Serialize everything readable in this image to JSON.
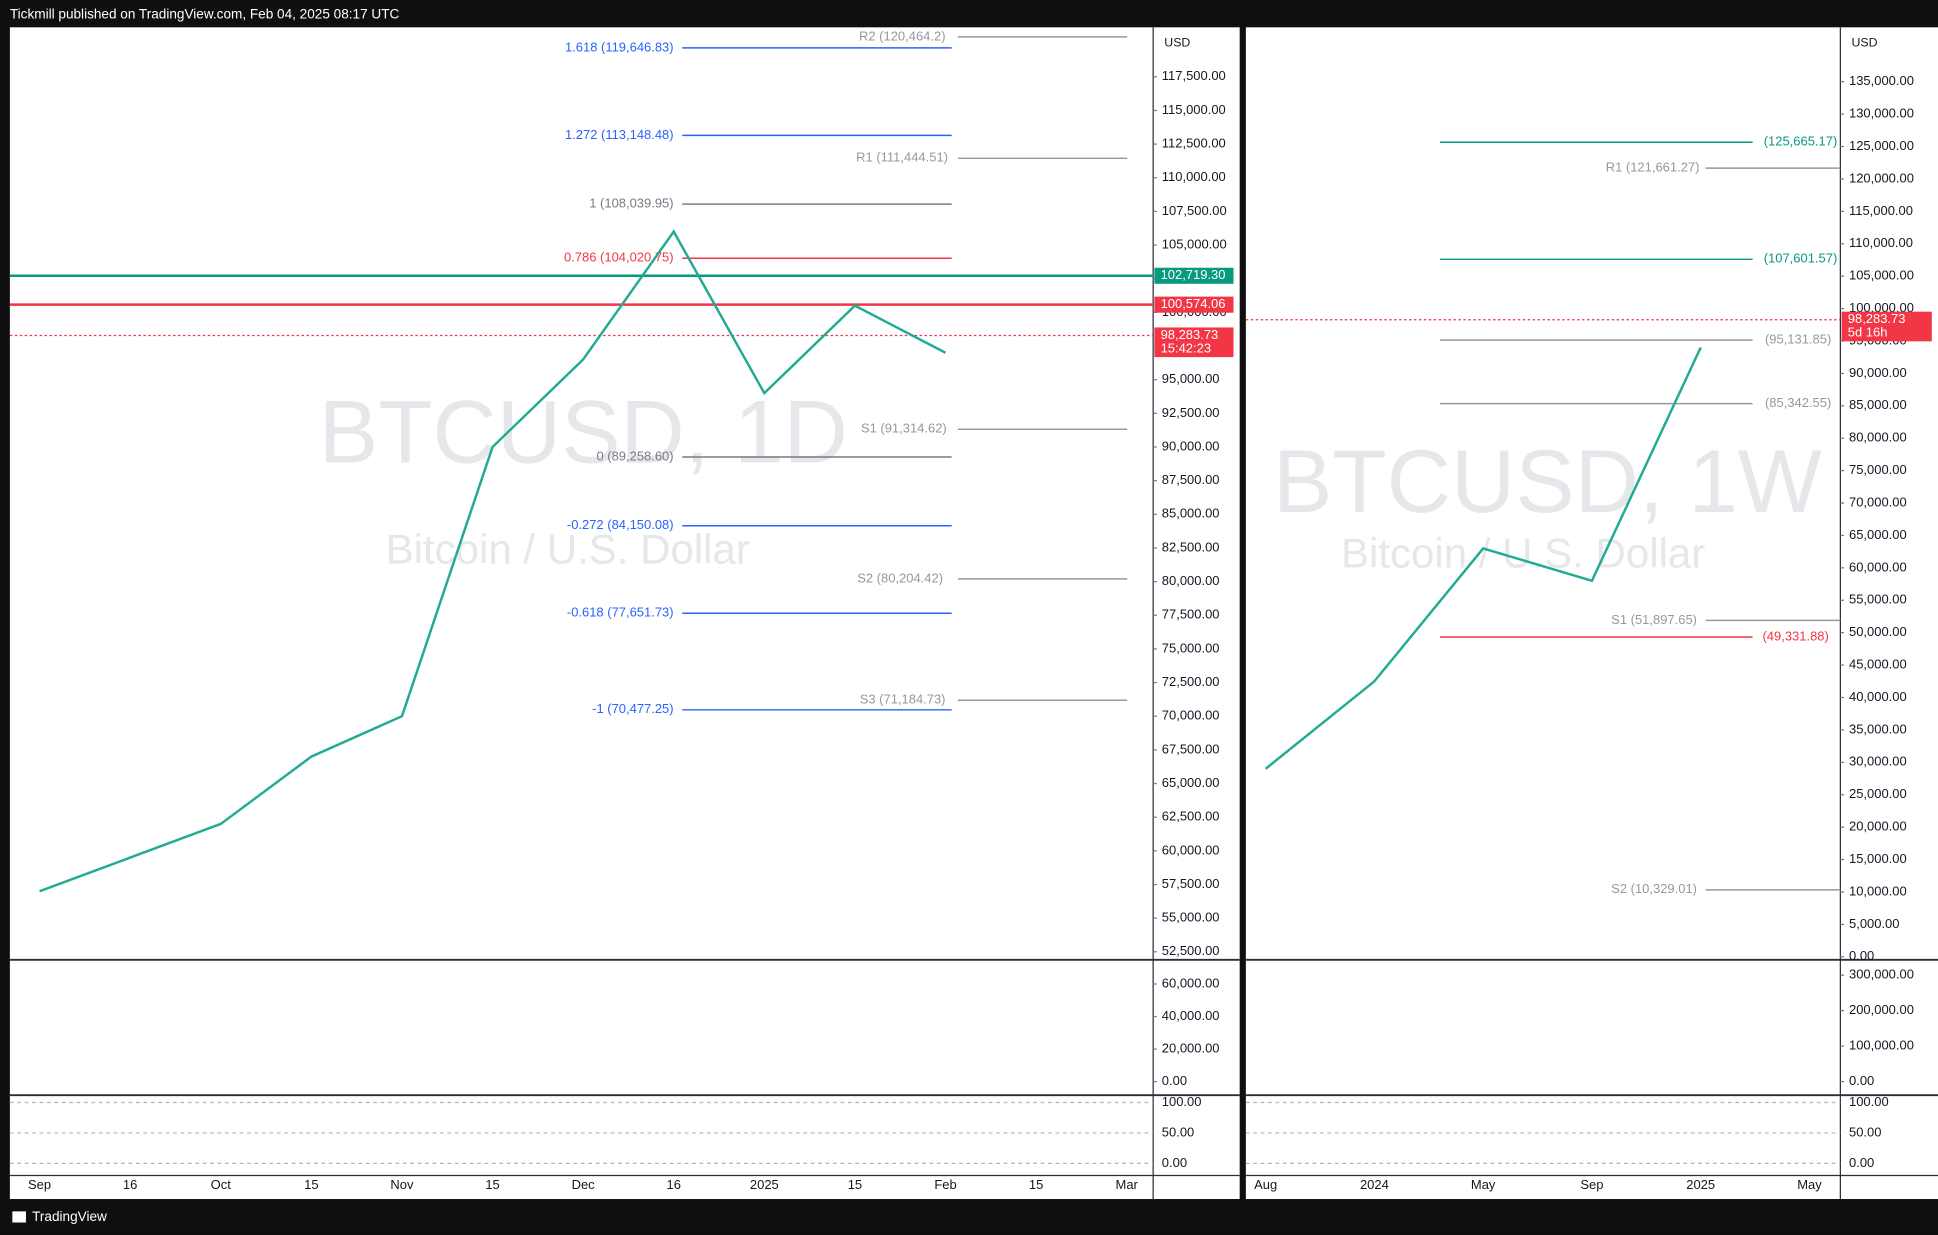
{
  "header": {
    "title": "Tickmill published on TradingView.com, Feb 04, 2025 08:17 UTC"
  },
  "footer": {
    "brand": "TradingView"
  },
  "chart_data": [
    {
      "type": "line",
      "title": "BTCUSD, 1D",
      "subtitle": "Bitcoin / U.S. Dollar",
      "currency": "USD",
      "categories": [
        "Sep",
        "16",
        "Oct",
        "15",
        "Nov",
        "15",
        "Dec",
        "16",
        "2025",
        "15",
        "Feb",
        "15",
        "Mar"
      ],
      "series": [
        {
          "name": "BTCUSD",
          "color": "#22ab94",
          "values": [
            57000,
            59500,
            62000,
            67000,
            70000,
            90000,
            96500,
            106000,
            94000,
            100500,
            97000,
            null,
            null
          ]
        }
      ],
      "ylim": [
        52041,
        121174
      ],
      "yticks": [
        {
          "value": 52500,
          "label": "52,500.00"
        },
        {
          "value": 55000,
          "label": "55,000.00"
        },
        {
          "value": 57500,
          "label": "57,500.00"
        },
        {
          "value": 60000,
          "label": "60,000.00"
        },
        {
          "value": 62500,
          "label": "62,500.00"
        },
        {
          "value": 65000,
          "label": "65,000.00"
        },
        {
          "value": 67500,
          "label": "67,500.00"
        },
        {
          "value": 70000,
          "label": "70,000.00"
        },
        {
          "value": 72500,
          "label": "72,500.00"
        },
        {
          "value": 75000,
          "label": "75,000.00"
        },
        {
          "value": 77500,
          "label": "77,500.00"
        },
        {
          "value": 80000,
          "label": "80,000.00"
        },
        {
          "value": 82500,
          "label": "82,500.00"
        },
        {
          "value": 85000,
          "label": "85,000.00"
        },
        {
          "value": 87500,
          "label": "87,500.00"
        },
        {
          "value": 90000,
          "label": "90,000.00"
        },
        {
          "value": 92500,
          "label": "92,500.00"
        },
        {
          "value": 95000,
          "label": "95,000.00"
        },
        {
          "value": 97500,
          "label": "97,500.00"
        },
        {
          "value": 100000,
          "label": "100,000.00"
        },
        {
          "value": 102500,
          "label": "102,500.00"
        },
        {
          "value": 105000,
          "label": "105,000.00"
        },
        {
          "value": 107500,
          "label": "107,500.00"
        },
        {
          "value": 110000,
          "label": "110,000.00"
        },
        {
          "value": 112500,
          "label": "112,500.00"
        },
        {
          "value": 115000,
          "label": "115,000.00"
        },
        {
          "value": 117500,
          "label": "117,500.00"
        }
      ],
      "levels": [
        {
          "label": "1.618 (119,646.83)",
          "value": 119646.83,
          "color": "#2962ff"
        },
        {
          "label": "1.272 (113,148.48)",
          "value": 113148.48,
          "color": "#2962ff"
        },
        {
          "label": "1 (108,039.95)",
          "value": 108039.95,
          "color": "#787b86"
        },
        {
          "label": "0.786 (104,020.75)",
          "value": 104020.75,
          "color": "#f23645"
        },
        {
          "label": "0 (89,258.60)",
          "value": 89258.6,
          "color": "#787b86"
        },
        {
          "label": "-0.272 (84,150.08)",
          "value": 84150.08,
          "color": "#2962ff"
        },
        {
          "label": "-0.618 (77,651.73)",
          "value": 77651.73,
          "color": "#2962ff"
        },
        {
          "label": "-1 (70,477.25)",
          "value": 70477.25,
          "color": "#2962ff"
        },
        {
          "label": "R2 (120,464.2)",
          "value": 120464.2,
          "color": "#9598a1"
        },
        {
          "label": "R1 (111,444.51)",
          "value": 111444.51,
          "color": "#9598a1"
        },
        {
          "label": "S1 (91,314.62)",
          "value": 91314.62,
          "color": "#9598a1"
        },
        {
          "label": "S2 (80,204.42)",
          "value": 80204.42,
          "color": "#9598a1"
        },
        {
          "label": "S3 (71,184.73)",
          "value": 71184.73,
          "color": "#9598a1"
        }
      ],
      "price_tags": [
        {
          "label": "102,719.30",
          "value": 102719.3,
          "color": "#089981"
        },
        {
          "label": "100,574.06",
          "value": 100574.06,
          "color": "#f23645"
        },
        {
          "label": "98,283.73",
          "value": 98283.73,
          "color": "#f23645",
          "sublabel": "15:42:23"
        }
      ],
      "volume_ylim": [
        -7600,
        73700
      ],
      "volume_yticks": [
        {
          "value": 0,
          "label": "0.00"
        },
        {
          "value": 20000,
          "label": "20,000.00"
        },
        {
          "value": 40000,
          "label": "40,000.00"
        },
        {
          "value": 60000,
          "label": "60,000.00"
        }
      ],
      "stoch_ylim": [
        -18,
        110
      ],
      "stoch_yticks": [
        {
          "value": 0,
          "label": "0.00"
        },
        {
          "value": 50,
          "label": "50.00"
        },
        {
          "value": 100,
          "label": "100.00"
        }
      ]
    },
    {
      "type": "line",
      "title": "BTCUSD, 1W",
      "subtitle": "Bitcoin / U.S. Dollar",
      "currency": "USD",
      "categories": [
        "Aug",
        "2024",
        "May",
        "Sep",
        "2025",
        "May"
      ],
      "series": [
        {
          "name": "BTCUSD",
          "color": "#22ab94",
          "values": [
            29000,
            42500,
            63000,
            58000,
            94000,
            null
          ]
        }
      ],
      "ylim": [
        -190,
        143390
      ],
      "yticks": [
        {
          "value": 0,
          "label": "0.00"
        },
        {
          "value": 5000,
          "label": "5,000.00"
        },
        {
          "value": 10000,
          "label": "10,000.00"
        },
        {
          "value": 15000,
          "label": "15,000.00"
        },
        {
          "value": 20000,
          "label": "20,000.00"
        },
        {
          "value": 25000,
          "label": "25,000.00"
        },
        {
          "value": 30000,
          "label": "30,000.00"
        },
        {
          "value": 35000,
          "label": "35,000.00"
        },
        {
          "value": 40000,
          "label": "40,000.00"
        },
        {
          "value": 45000,
          "label": "45,000.00"
        },
        {
          "value": 50000,
          "label": "50,000.00"
        },
        {
          "value": 55000,
          "label": "55,000.00"
        },
        {
          "value": 60000,
          "label": "60,000.00"
        },
        {
          "value": 65000,
          "label": "65,000.00"
        },
        {
          "value": 70000,
          "label": "70,000.00"
        },
        {
          "value": 75000,
          "label": "75,000.00"
        },
        {
          "value": 80000,
          "label": "80,000.00"
        },
        {
          "value": 85000,
          "label": "85,000.00"
        },
        {
          "value": 90000,
          "label": "90,000.00"
        },
        {
          "value": 95000,
          "label": "95,000.00"
        },
        {
          "value": 100000,
          "label": "100,000.00"
        },
        {
          "value": 105000,
          "label": "105,000.00"
        },
        {
          "value": 110000,
          "label": "110,000.00"
        },
        {
          "value": 115000,
          "label": "115,000.00"
        },
        {
          "value": 120000,
          "label": "120,000.00"
        },
        {
          "value": 125000,
          "label": "125,000.00"
        },
        {
          "value": 130000,
          "label": "130,000.00"
        },
        {
          "value": 135000,
          "label": "135,000.00"
        }
      ],
      "levels": [
        {
          "label": "(125,665.17)",
          "value": 125665.17,
          "color": "#089981"
        },
        {
          "label": "(107,601.57)",
          "value": 107601.57,
          "color": "#089981"
        },
        {
          "label": "(95,131.85)",
          "value": 95131.85,
          "color": "#9598a1"
        },
        {
          "label": "(85,342.55)",
          "value": 85342.55,
          "color": "#9598a1"
        },
        {
          "label": "(49,331.88)",
          "value": 49331.88,
          "color": "#f23645"
        },
        {
          "label": "R1 (121,661.27)",
          "value": 121661.27,
          "color": "#9598a1"
        },
        {
          "label": "S1 (51,897.65)",
          "value": 51897.65,
          "color": "#9598a1"
        },
        {
          "label": "S2 (10,329.01)",
          "value": 10329.01,
          "color": "#9598a1"
        }
      ],
      "price_tags": [
        {
          "label": "98,283.73",
          "value": 98283.73,
          "color": "#f23645",
          "sublabel": "5d 16h"
        }
      ],
      "volume_ylim": [
        -35000,
        338000
      ],
      "volume_yticks": [
        {
          "value": 0,
          "label": "0.00"
        },
        {
          "value": 100000,
          "label": "100,000.00"
        },
        {
          "value": 200000,
          "label": "200,000.00"
        },
        {
          "value": 300000,
          "label": "300,000.00"
        }
      ],
      "stoch_ylim": [
        -18,
        110
      ],
      "stoch_yticks": [
        {
          "value": 0,
          "label": "0.00"
        },
        {
          "value": 50,
          "label": "50.00"
        },
        {
          "value": 100,
          "label": "100.00"
        }
      ]
    }
  ]
}
